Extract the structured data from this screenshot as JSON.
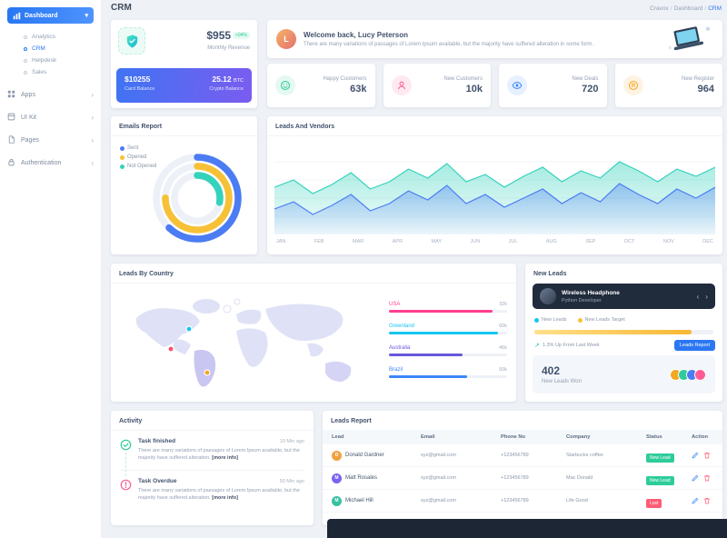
{
  "header": {
    "title": "CRM",
    "breadcrumb": [
      "Cravox",
      "Dashboard",
      "CRM"
    ]
  },
  "sidebar": {
    "dashboard": {
      "label": "Dashboard",
      "children": [
        "Analytics",
        "CRM",
        "Helpdesk",
        "Sales"
      ],
      "active_child": "CRM"
    },
    "items": [
      {
        "label": "Apps",
        "icon": "grid-icon"
      },
      {
        "label": "UI Kit",
        "icon": "box-icon"
      },
      {
        "label": "Pages",
        "icon": "file-icon"
      },
      {
        "label": "Authentication",
        "icon": "lock-icon"
      }
    ]
  },
  "revenue": {
    "amount": "$955",
    "delta": "+94%",
    "label": "Monthly Revenue",
    "card_balance": "$10255",
    "card_balance_label": "Card Balance",
    "crypto_amount": "25.12",
    "crypto_unit": "BTC",
    "crypto_label": "Crypto Balance"
  },
  "welcome": {
    "avatar_initial": "L",
    "title": "Welcome back, Lucy Peterson",
    "subtitle": "There are many variations of passages of Lorem Ipsum available, but the majority have suffered alteration in some form."
  },
  "stats": [
    {
      "label": "Happy Customers",
      "value": "63k",
      "icon": "smiley-icon",
      "color": "#2ecc9a",
      "bg": "#e3f9f1"
    },
    {
      "label": "New Customers",
      "value": "10k",
      "icon": "person-icon",
      "color": "#ff5c93",
      "bg": "#ffe9f1"
    },
    {
      "label": "New Deals",
      "value": "720",
      "icon": "eye-icon",
      "color": "#3b86f7",
      "bg": "#e7f0fe"
    },
    {
      "label": "New Register",
      "value": "964",
      "icon": "register-icon",
      "color": "#f5a623",
      "bg": "#fef3e2"
    }
  ],
  "emails_report": {
    "title": "Emails Report"
  },
  "leads_vendors": {
    "title": "Leads And Vendors"
  },
  "leads_by_country": {
    "title": "Leads By Country"
  },
  "new_leads": {
    "title": "New Leads",
    "profile_name": "Wireless Headphone",
    "profile_role": "Python Developer",
    "prev_arrow": "‹",
    "next_arrow": "›",
    "legend": [
      {
        "label": "New Leads",
        "color": "#18c5f0"
      },
      {
        "label": "New Leads Target",
        "color": "#f7c137"
      }
    ],
    "progress": 88,
    "trend_icon": "↗",
    "trend": "1.3% Up From Last Week",
    "button": "Leads Report",
    "won_value": "402",
    "won_label": "New Leads Won"
  },
  "activity": {
    "title": "Activity",
    "items": [
      {
        "title": "Task finished",
        "time": "10 Min ago",
        "body": "There are many variations of passages of Lorem Ipsum available, but the majority have suffered alteration.",
        "link": "[more info]",
        "icon": "check-circle-icon",
        "color": "#2ecc9a"
      },
      {
        "title": "Task Overdue",
        "time": "50 Min ago",
        "body": "There are many variations of passages of Lorem Ipsum available, but the majority have suffered alteration.",
        "link": "[more info]",
        "icon": "alert-circle-icon",
        "color": "#ff5c93"
      }
    ]
  },
  "leads_report": {
    "title": "Leads Report",
    "columns": [
      "Lead",
      "Email",
      "Phone No",
      "Company",
      "Status",
      "Action"
    ],
    "rows": [
      {
        "name": "Donald Gardner",
        "initial": "D",
        "avatar_color": "#f0a13f",
        "email": "xyz@gmail.com",
        "phone": "+123456789",
        "company": "Starbucks coffee",
        "status": "New Lead",
        "status_color": "#2ecc9a"
      },
      {
        "name": "Matt Rosales",
        "initial": "M",
        "avatar_color": "#7a63f1",
        "email": "xyz@gmail.com",
        "phone": "+123456789",
        "company": "Mac Donald",
        "status": "New Lead",
        "status_color": "#2ecc9a"
      },
      {
        "name": "Michael Hill",
        "initial": "M",
        "avatar_color": "#37c2a0",
        "email": "xyz@gmail.com",
        "phone": "+123456789",
        "company": "Life Good",
        "status": "Lost",
        "status_color": "#ff5c75"
      }
    ]
  },
  "chart_data": [
    {
      "type": "donut",
      "title": "Emails Report",
      "legend_position": "top-left",
      "series": [
        {
          "name": "Sent",
          "value": 62,
          "color": "#4b7cf3"
        },
        {
          "name": "Opened",
          "value": 75,
          "color": "#f7c137"
        },
        {
          "name": "Not Opened",
          "value": 28,
          "color": "#35d2bc"
        }
      ]
    },
    {
      "type": "area",
      "title": "Leads And Vendors",
      "categories": [
        "JAN",
        "FEB",
        "MAR",
        "APR",
        "MAY",
        "JUN",
        "JUL",
        "AUG",
        "SEP",
        "OCT",
        "NOV",
        "DEC"
      ],
      "ylim": [
        0,
        100
      ],
      "grid": true,
      "series": [
        {
          "name": "Leads",
          "color": "#35d2bc",
          "values": [
            52,
            60,
            45,
            55,
            68,
            50,
            58,
            72,
            62,
            78,
            58,
            66,
            52,
            64,
            74,
            58,
            70,
            62,
            80,
            70,
            58,
            72,
            64,
            74
          ]
        },
        {
          "name": "Vendors",
          "color": "#4b7cf3",
          "values": [
            28,
            36,
            22,
            32,
            44,
            26,
            34,
            48,
            38,
            54,
            34,
            44,
            30,
            40,
            50,
            34,
            46,
            36,
            56,
            44,
            34,
            50,
            40,
            52
          ]
        }
      ]
    },
    {
      "type": "bar",
      "title": "Leads By Country",
      "categories": [
        "USA",
        "Greenland",
        "Australia",
        "Brazil"
      ],
      "value_labels": [
        "32k",
        "60k",
        "45k",
        "50k"
      ],
      "values": [
        32,
        60,
        45,
        50
      ],
      "percents": [
        88,
        92,
        62,
        66
      ],
      "colors": [
        "#ff3e8e",
        "#18c5f0",
        "#6658dd",
        "#3b86f7"
      ]
    }
  ]
}
